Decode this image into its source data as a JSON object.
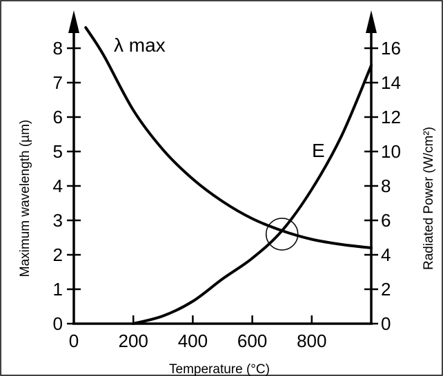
{
  "chart_data": {
    "type": "line",
    "xlabel": "Temperature (°C)",
    "ylabel_left": "Maximum wavelength (µm)",
    "ylabel_right": "Radiated Power (W/cm²)",
    "xlim": [
      0,
      1000
    ],
    "ylim_left": [
      0,
      8.6
    ],
    "ylim_right": [
      0,
      17.2
    ],
    "xticks": [
      0,
      200,
      400,
      600,
      800
    ],
    "yticks_left": [
      0,
      1,
      2,
      3,
      4,
      5,
      6,
      7,
      8
    ],
    "yticks_right": [
      0,
      2,
      4,
      6,
      8,
      10,
      12,
      14,
      16
    ],
    "grid": false,
    "series": [
      {
        "name": "λ max",
        "axis": "left",
        "x": [
          40,
          100,
          200,
          300,
          400,
          500,
          600,
          700,
          800,
          900,
          1000
        ],
        "y": [
          8.6,
          7.8,
          6.2,
          5.05,
          4.2,
          3.55,
          3.05,
          2.7,
          2.45,
          2.3,
          2.2
        ]
      },
      {
        "name": "E",
        "axis": "right",
        "x": [
          200,
          300,
          400,
          500,
          600,
          700,
          800,
          900,
          1000
        ],
        "y": [
          0,
          0.45,
          1.3,
          2.6,
          3.8,
          5.4,
          7.8,
          10.9,
          15.0
        ]
      }
    ],
    "annotations": [
      {
        "type": "circle",
        "x": 700,
        "y_left": 2.6
      }
    ]
  }
}
